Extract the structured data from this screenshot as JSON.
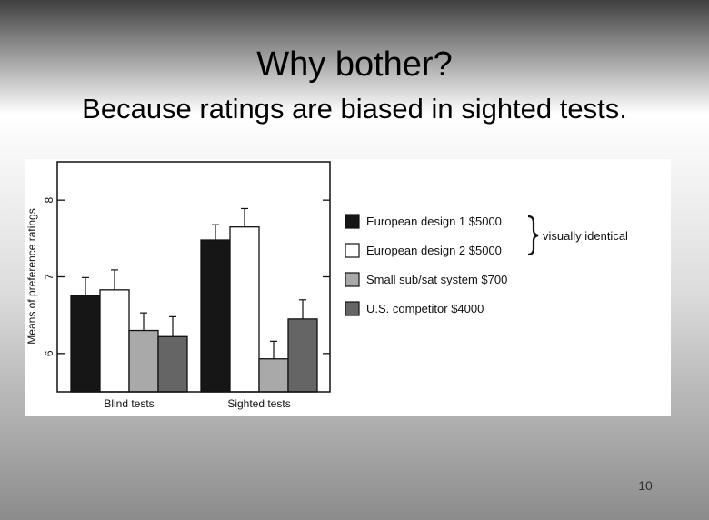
{
  "slide": {
    "title": "Why bother?",
    "subtitle": "Because ratings are biased in sighted tests.",
    "page_number": "10"
  },
  "chart_data": {
    "type": "bar",
    "categories": [
      "Blind tests",
      "Sighted tests"
    ],
    "ylabel": "Means of preference ratings",
    "xlabel": "",
    "ylim": [
      5.5,
      8.5
    ],
    "yticks": [
      6,
      7,
      8
    ],
    "grid": false,
    "legend_position": "right",
    "series": [
      {
        "name": "European design 1  $5000",
        "color": "#161616",
        "values": [
          6.75,
          7.48
        ],
        "errors": [
          0.24,
          0.2
        ]
      },
      {
        "name": "European design 2  $5000",
        "color": "#ffffff",
        "values": [
          6.83,
          7.65
        ],
        "errors": [
          0.26,
          0.24
        ]
      },
      {
        "name": "Small sub/sat system $700",
        "color": "#a9a9a9",
        "values": [
          6.3,
          5.93
        ],
        "errors": [
          0.23,
          0.23
        ]
      },
      {
        "name": "U.S. competitor  $4000",
        "color": "#656565",
        "values": [
          6.22,
          6.45
        ],
        "errors": [
          0.26,
          0.25
        ]
      }
    ],
    "annotation": "visually identical"
  }
}
